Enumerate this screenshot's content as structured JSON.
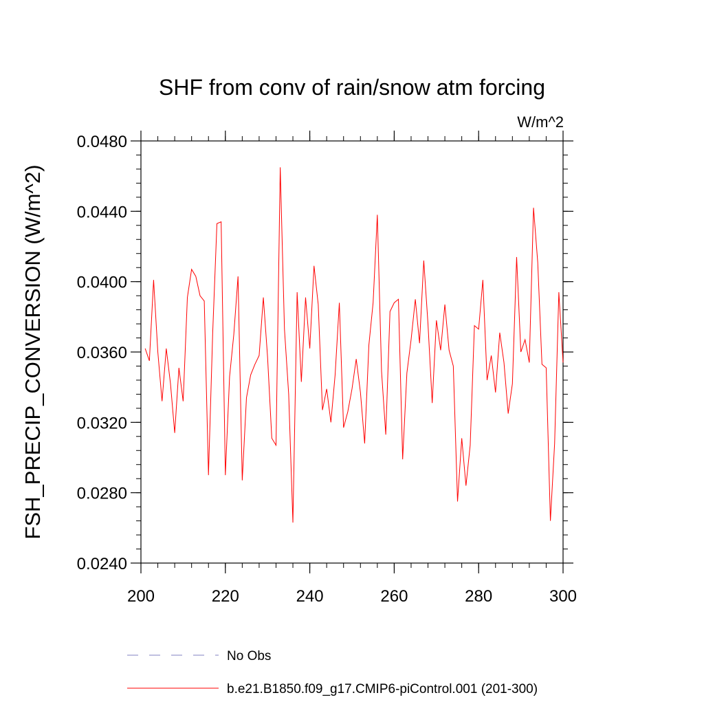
{
  "chart_data": {
    "type": "line",
    "title": "SHF from conv of rain/snow atm forcing",
    "units_label": "W/m^2",
    "xlabel": "",
    "ylabel": "FSH_PRECIP_CONVERSION  (W/m^2)",
    "xlim": [
      200,
      300
    ],
    "ylim": [
      0.024,
      0.048
    ],
    "x_ticks": [
      200,
      220,
      240,
      260,
      280,
      300
    ],
    "y_ticks": [
      0.024,
      0.028,
      0.032,
      0.036,
      0.04,
      0.044,
      0.048
    ],
    "y_tick_labels": [
      "0.0240",
      "0.0280",
      "0.0320",
      "0.0360",
      "0.0400",
      "0.0440",
      "0.0480"
    ],
    "x_tick_labels": [
      "200",
      "220",
      "240",
      "260",
      "280",
      "300"
    ],
    "series": [
      {
        "name": "No Obs",
        "color": "#8080c0",
        "dash": "dashed",
        "values": []
      },
      {
        "name": "b.e21.B1850.f09_g17.CMIP6-piControl.001 (201-300)",
        "color": "#ff0000",
        "dash": "solid",
        "x_start": 201,
        "values": [
          0.0362,
          0.0355,
          0.0401,
          0.036,
          0.0332,
          0.0362,
          0.0342,
          0.0314,
          0.0351,
          0.0332,
          0.0391,
          0.0407,
          0.0403,
          0.0392,
          0.0389,
          0.029,
          0.0371,
          0.0433,
          0.0434,
          0.029,
          0.0346,
          0.037,
          0.0403,
          0.0287,
          0.0334,
          0.0347,
          0.0353,
          0.0358,
          0.0391,
          0.0357,
          0.0311,
          0.0307,
          0.0465,
          0.0373,
          0.0336,
          0.0263,
          0.0394,
          0.0343,
          0.0391,
          0.0362,
          0.0409,
          0.0387,
          0.0327,
          0.0339,
          0.032,
          0.0347,
          0.0388,
          0.0317,
          0.0326,
          0.0339,
          0.0356,
          0.0337,
          0.0308,
          0.0364,
          0.0388,
          0.0438,
          0.0349,
          0.0313,
          0.0383,
          0.0388,
          0.039,
          0.0299,
          0.0348,
          0.0367,
          0.039,
          0.0365,
          0.0412,
          0.0376,
          0.0331,
          0.0378,
          0.0361,
          0.0387,
          0.0361,
          0.0352,
          0.0275,
          0.0311,
          0.0284,
          0.0307,
          0.0375,
          0.0373,
          0.0401,
          0.0344,
          0.0358,
          0.0337,
          0.0371,
          0.0354,
          0.0325,
          0.0342,
          0.0414,
          0.036,
          0.0367,
          0.0354,
          0.0442,
          0.0411,
          0.0353,
          0.0351,
          0.0264,
          0.0308,
          0.0394,
          0.0354
        ]
      }
    ],
    "legend_position": "bottom",
    "grid": false
  }
}
